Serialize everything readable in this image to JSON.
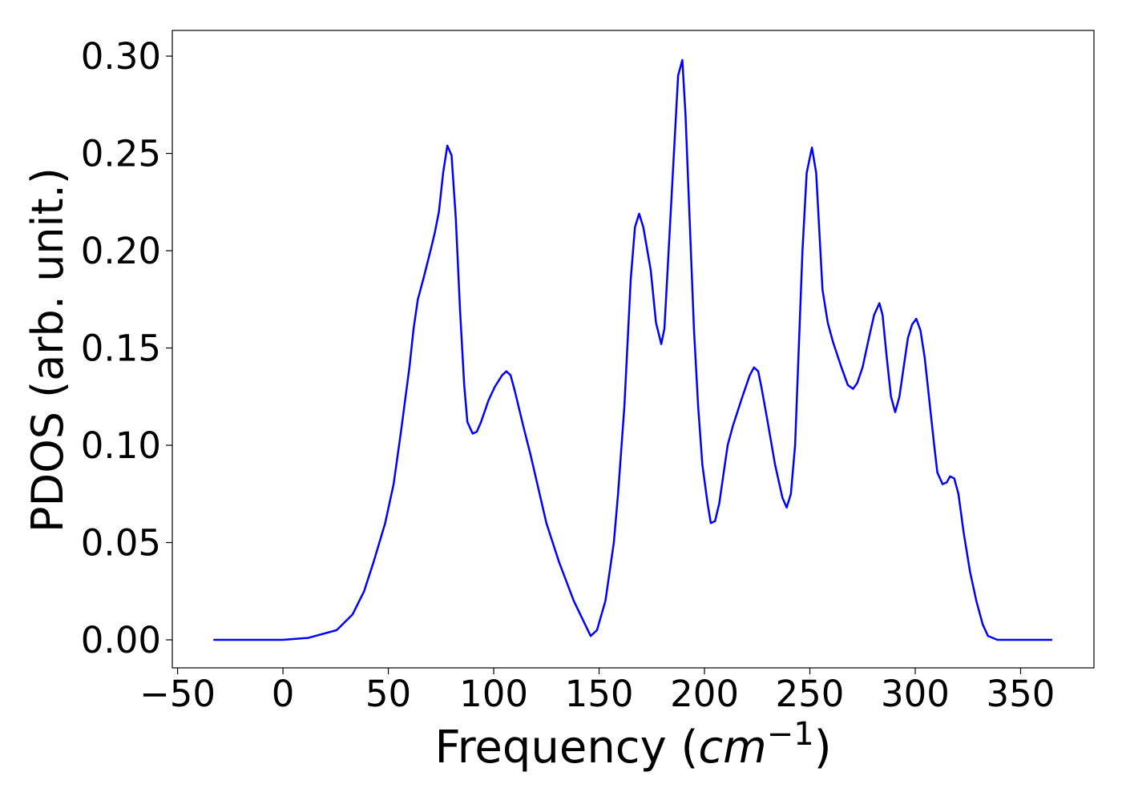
{
  "chart_data": {
    "type": "line",
    "xlabel": [
      "Frequency (",
      "cm",
      "−1",
      ")"
    ],
    "ylabel": "PDOS (arb. unit.)",
    "xlim": [
      -52.5,
      384.8
    ],
    "ylim": [
      -0.0144,
      0.3132
    ],
    "xticks": [
      {
        "value": -50,
        "label": "−50"
      },
      0,
      50,
      100,
      150,
      200,
      250,
      300,
      350
    ],
    "yticks": [
      {
        "value": 0,
        "label": "0.00"
      },
      {
        "value": 0.05,
        "label": "0.05"
      },
      {
        "value": 0.1,
        "label": "0.10"
      },
      {
        "value": 0.15,
        "label": "0.15"
      },
      {
        "value": 0.2,
        "label": "0.20"
      },
      {
        "value": 0.25,
        "label": "0.25"
      },
      {
        "value": 0.3,
        "label": "0.30"
      }
    ],
    "grid": false,
    "series": [
      {
        "color": "#0000ff",
        "x": [
          -33,
          0,
          12,
          25.5,
          33,
          38.5,
          43,
          48.5,
          52.5,
          56,
          60,
          62,
          64,
          66.5,
          70,
          72,
          74,
          76,
          78,
          80,
          82,
          84,
          86,
          87.5,
          90,
          92,
          94,
          97.5,
          100.5,
          104,
          106,
          108,
          110,
          114,
          117.5,
          125,
          131,
          138,
          146,
          149,
          153,
          157,
          159,
          162,
          165,
          167,
          169,
          171,
          174.5,
          177,
          179.5,
          181,
          183.5,
          187.5,
          189.5,
          191,
          195,
          197,
          199,
          201.5,
          203,
          205,
          207,
          209,
          211,
          213.5,
          218,
          221.5,
          223.5,
          225.5,
          227,
          229.5,
          233.5,
          237,
          239,
          241,
          243,
          246.5,
          248.5,
          251,
          253,
          256,
          258.5,
          261,
          265,
          268,
          270.5,
          272.5,
          275,
          278,
          280.5,
          283,
          284.5,
          286.5,
          288.5,
          290.5,
          292.5,
          294.5,
          296.5,
          298.5,
          300.5,
          302.5,
          304.5,
          307,
          309,
          310.5,
          313,
          315,
          316.5,
          318.5,
          320.5,
          323,
          326,
          329,
          332,
          334.5,
          339,
          365
        ],
        "values": [
          0,
          0,
          0.001,
          0.005,
          0.013,
          0.025,
          0.04,
          0.06,
          0.08,
          0.107,
          0.14,
          0.16,
          0.175,
          0.185,
          0.2,
          0.209,
          0.22,
          0.24,
          0.254,
          0.249,
          0.217,
          0.17,
          0.131,
          0.112,
          0.106,
          0.107,
          0.112,
          0.123,
          0.13,
          0.136,
          0.138,
          0.136,
          0.128,
          0.11,
          0.095,
          0.06,
          0.04,
          0.02,
          0.002,
          0.005,
          0.02,
          0.05,
          0.075,
          0.12,
          0.185,
          0.212,
          0.219,
          0.212,
          0.19,
          0.163,
          0.152,
          0.16,
          0.21,
          0.29,
          0.298,
          0.27,
          0.16,
          0.12,
          0.09,
          0.07,
          0.06,
          0.061,
          0.07,
          0.085,
          0.1,
          0.11,
          0.125,
          0.136,
          0.14,
          0.138,
          0.13,
          0.115,
          0.09,
          0.073,
          0.068,
          0.075,
          0.1,
          0.2,
          0.24,
          0.253,
          0.24,
          0.18,
          0.163,
          0.153,
          0.14,
          0.131,
          0.129,
          0.132,
          0.14,
          0.155,
          0.167,
          0.173,
          0.167,
          0.145,
          0.125,
          0.117,
          0.125,
          0.14,
          0.155,
          0.162,
          0.165,
          0.159,
          0.145,
          0.12,
          0.1,
          0.086,
          0.08,
          0.081,
          0.084,
          0.083,
          0.075,
          0.055,
          0.035,
          0.02,
          0.008,
          0.002,
          0,
          0
        ]
      }
    ]
  }
}
